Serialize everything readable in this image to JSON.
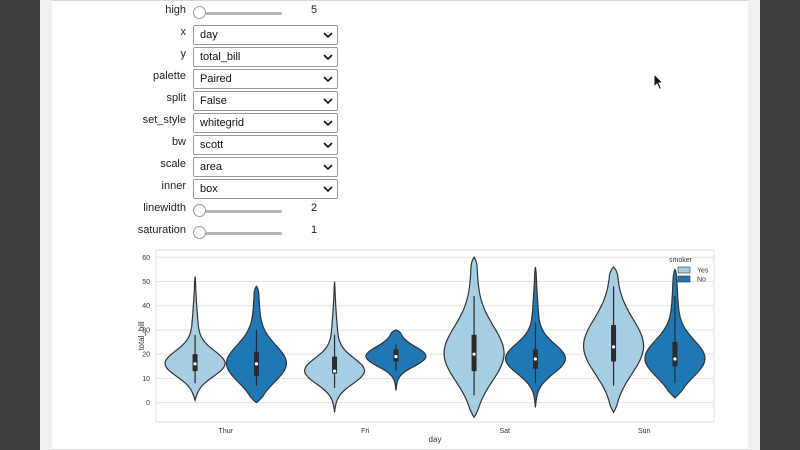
{
  "controls": {
    "high": {
      "label": "high",
      "value": "5",
      "fraction": 0.0
    },
    "x": {
      "label": "x",
      "value": "day"
    },
    "y": {
      "label": "y",
      "value": "total_bill"
    },
    "palette": {
      "label": "palette",
      "value": "Paired"
    },
    "split": {
      "label": "split",
      "value": "False"
    },
    "set_style": {
      "label": "set_style",
      "value": "whitegrid"
    },
    "bw": {
      "label": "bw",
      "value": "scott"
    },
    "scale": {
      "label": "scale",
      "value": "area"
    },
    "inner": {
      "label": "inner",
      "value": "box"
    },
    "linewidth": {
      "label": "linewidth",
      "value": "2",
      "fraction": 0.0
    },
    "saturation": {
      "label": "saturation",
      "value": "1",
      "fraction": 0.0
    }
  },
  "colors": {
    "yes": "#a6cee3",
    "no": "#1f78b4",
    "grid": "#e3e3e3",
    "outline": "#333333"
  },
  "chart_data": {
    "type": "violin",
    "xlabel": "day",
    "ylabel": "total_bill",
    "categories": [
      "Thur",
      "Fri",
      "Sat",
      "Sun"
    ],
    "yticks": [
      0,
      10,
      20,
      30,
      40,
      50,
      60
    ],
    "ylim": [
      -8,
      63
    ],
    "grid": true,
    "legend": {
      "title": "smoker",
      "placement": "top-right",
      "entries": [
        "Yes",
        "No"
      ]
    },
    "series": [
      {
        "name": "Yes",
        "violins": [
          {
            "min": 1,
            "max": 52,
            "q1": 13,
            "median": 16,
            "q3": 20,
            "whisker_low": 8,
            "whisker_high": 28
          },
          {
            "min": -4,
            "max": 50,
            "q1": 12,
            "median": 13,
            "q3": 19,
            "whisker_low": 6,
            "whisker_high": 28
          },
          {
            "min": -6,
            "max": 60,
            "q1": 13,
            "median": 20,
            "q3": 28,
            "whisker_low": 3,
            "whisker_high": 44
          },
          {
            "min": -4,
            "max": 56,
            "q1": 17,
            "median": 23,
            "q3": 32,
            "whisker_low": 7,
            "whisker_high": 48
          }
        ]
      },
      {
        "name": "No",
        "violins": [
          {
            "min": 0,
            "max": 48,
            "q1": 11,
            "median": 16,
            "q3": 21,
            "whisker_low": 7,
            "whisker_high": 30
          },
          {
            "min": 5,
            "max": 30,
            "q1": 17,
            "median": 19,
            "q3": 22,
            "whisker_low": 13,
            "whisker_high": 24
          },
          {
            "min": -2,
            "max": 56,
            "q1": 14,
            "median": 18,
            "q3": 22,
            "whisker_low": 8,
            "whisker_high": 33
          },
          {
            "min": 2,
            "max": 55,
            "q1": 15,
            "median": 18,
            "q3": 25,
            "whisker_low": 8,
            "whisker_high": 44
          }
        ]
      }
    ]
  }
}
